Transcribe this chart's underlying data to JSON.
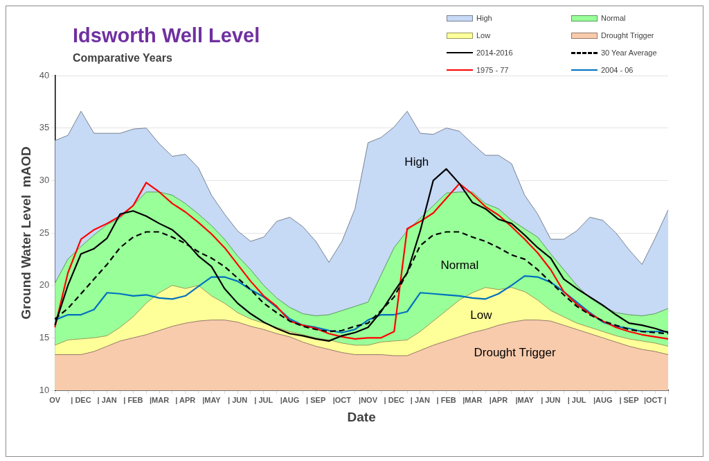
{
  "chart_data": {
    "type": "line",
    "title": "Idsworth Well Level",
    "subtitle": "Comparative Years",
    "xlabel": "Date",
    "ylabel": "Ground Water Level  mAOD",
    "categories": [
      "OV",
      null,
      "| DEC",
      null,
      "| JAN",
      null,
      "| FEB",
      null,
      "|MAR",
      null,
      "| APR",
      null,
      "|MAY",
      null,
      "| JUN",
      null,
      "| JUL",
      null,
      "|AUG",
      null,
      "| SEP",
      null,
      "|OCT",
      null,
      "|NOV",
      null,
      "| DEC",
      null,
      "| JAN",
      null,
      "| FEB",
      null,
      "|MAR",
      null,
      "|APR",
      null,
      "|MAY",
      null,
      "| JUN",
      null,
      "| JUL",
      null,
      "|AUG",
      null,
      "| SEP",
      null,
      "|OCT |",
      null
    ],
    "ylim": [
      10,
      40
    ],
    "yticks": [
      10,
      15,
      20,
      25,
      30,
      35,
      40
    ],
    "grid": "y",
    "legend": "top right",
    "series": [
      {
        "name": "High",
        "type": "area",
        "color": "#c6d9f5",
        "values": [
          33.8,
          34.3,
          36.6,
          34.5,
          34.5,
          34.5,
          34.9,
          35.0,
          33.5,
          32.3,
          32.5,
          31.2,
          28.6,
          26.8,
          25.2,
          24.2,
          24.6,
          26.1,
          26.5,
          25.6,
          24.2,
          22.2,
          24.2,
          27.3,
          33.6,
          34.1,
          35.1,
          36.6,
          34.5,
          34.4,
          35.0,
          34.7,
          33.5,
          32.4,
          32.4,
          31.6,
          28.6,
          26.8,
          24.4,
          24.4,
          25.2,
          26.5,
          26.2,
          25.0,
          23.4,
          22.0,
          24.5,
          27.2
        ]
      },
      {
        "name": "Normal",
        "type": "area",
        "color": "#99ff99",
        "values": [
          20.2,
          22.5,
          23.7,
          24.8,
          25.8,
          26.4,
          27.6,
          28.9,
          28.9,
          28.6,
          27.8,
          26.8,
          25.7,
          24.4,
          22.8,
          21.5,
          20.0,
          18.8,
          17.9,
          17.3,
          17.1,
          17.2,
          17.6,
          18.0,
          18.4,
          21.0,
          23.6,
          25.2,
          26.4,
          27.6,
          28.8,
          28.9,
          28.9,
          27.8,
          27.3,
          26.2,
          25.4,
          24.6,
          23.0,
          21.5,
          20.0,
          18.8,
          18.0,
          17.4,
          17.2,
          17.1,
          17.3,
          17.8
        ]
      },
      {
        "name": "Low",
        "type": "area",
        "color": "#ffff99",
        "values": [
          14.3,
          14.8,
          14.9,
          15.0,
          15.2,
          16.0,
          17.0,
          18.3,
          19.3,
          20.0,
          19.7,
          20.0,
          19.0,
          18.3,
          17.4,
          16.8,
          16.4,
          16.0,
          15.6,
          15.3,
          15.0,
          14.8,
          14.5,
          14.3,
          14.3,
          14.6,
          14.7,
          14.8,
          15.6,
          16.6,
          17.6,
          18.6,
          19.3,
          19.8,
          19.6,
          19.8,
          19.4,
          18.6,
          17.6,
          17.0,
          16.4,
          16.0,
          15.6,
          15.2,
          14.9,
          14.7,
          14.5,
          14.2
        ]
      },
      {
        "name": "Drought Trigger",
        "type": "area",
        "color": "#f8cbad",
        "values": [
          13.4,
          13.4,
          13.4,
          13.7,
          14.2,
          14.7,
          15.0,
          15.3,
          15.7,
          16.1,
          16.4,
          16.6,
          16.7,
          16.7,
          16.5,
          16.1,
          15.8,
          15.4,
          15.1,
          14.6,
          14.2,
          13.9,
          13.6,
          13.4,
          13.4,
          13.4,
          13.3,
          13.3,
          13.8,
          14.3,
          14.7,
          15.1,
          15.5,
          15.8,
          16.2,
          16.5,
          16.7,
          16.7,
          16.6,
          16.2,
          15.8,
          15.4,
          15.0,
          14.6,
          14.2,
          13.9,
          13.7,
          13.4
        ]
      },
      {
        "name": "2014-2016",
        "type": "line",
        "color": "#000000",
        "values": [
          16.2,
          20.0,
          23.0,
          23.5,
          24.5,
          26.8,
          27.1,
          26.6,
          25.9,
          25.3,
          24.2,
          22.8,
          21.8,
          19.7,
          18.3,
          17.3,
          16.5,
          15.9,
          15.4,
          15.2,
          14.9,
          14.7,
          15.2,
          15.5,
          16.0,
          17.5,
          19.4,
          21.2,
          25.2,
          30.0,
          31.1,
          29.7,
          27.9,
          27.3,
          26.3,
          25.9,
          24.8,
          23.6,
          22.6,
          20.6,
          19.7,
          18.9,
          18.1,
          17.2,
          16.4,
          16.2,
          15.9,
          15.5
        ]
      },
      {
        "name": "30 Year Average",
        "type": "line",
        "color": "#000000",
        "line_style": "dashed",
        "values": [
          16.8,
          17.8,
          19.2,
          20.6,
          22.0,
          23.6,
          24.6,
          25.1,
          25.1,
          24.6,
          24.0,
          23.2,
          22.6,
          21.8,
          20.7,
          19.6,
          18.3,
          17.4,
          16.6,
          16.1,
          15.8,
          15.6,
          15.7,
          16.1,
          16.4,
          17.6,
          18.9,
          21.2,
          23.8,
          24.8,
          25.1,
          25.1,
          24.6,
          24.2,
          23.6,
          22.9,
          22.5,
          21.5,
          20.3,
          19.1,
          18.0,
          17.2,
          16.6,
          16.2,
          15.8,
          15.6,
          15.5,
          15.4
        ]
      },
      {
        "name": "1975 - 77",
        "type": "line",
        "color": "#ff0000",
        "values": [
          16.0,
          21.2,
          24.4,
          25.3,
          25.9,
          26.6,
          27.6,
          29.8,
          28.9,
          27.8,
          27.0,
          26.0,
          24.9,
          23.6,
          22.0,
          20.4,
          19.0,
          18.0,
          16.6,
          16.2,
          15.9,
          15.4,
          15.1,
          14.9,
          15.0,
          15.0,
          15.6,
          25.4,
          26.1,
          26.9,
          28.3,
          29.7,
          28.7,
          27.5,
          26.7,
          25.6,
          24.4,
          23.1,
          21.5,
          19.4,
          18.2,
          17.3,
          16.6,
          16.0,
          15.6,
          15.3,
          15.1,
          14.9
        ]
      },
      {
        "name": "2004 - 06",
        "type": "line",
        "color": "#0070c0",
        "values": [
          16.7,
          17.2,
          17.2,
          17.7,
          19.3,
          19.2,
          19.0,
          19.1,
          18.8,
          18.7,
          19.0,
          19.9,
          20.8,
          20.8,
          20.4,
          19.6,
          18.9,
          17.9,
          16.8,
          16.2,
          16.0,
          15.7,
          15.5,
          15.8,
          16.7,
          17.2,
          17.2,
          17.5,
          19.3,
          19.2,
          19.1,
          19.0,
          18.8,
          18.7,
          19.2,
          20.0,
          20.9,
          20.8,
          20.3,
          19.4,
          18.4,
          17.4,
          16.5,
          16.1,
          15.9,
          15.6,
          15.6,
          15.6
        ]
      }
    ],
    "annotations": [
      "High",
      "Normal",
      "Low",
      "Drought Trigger"
    ]
  }
}
